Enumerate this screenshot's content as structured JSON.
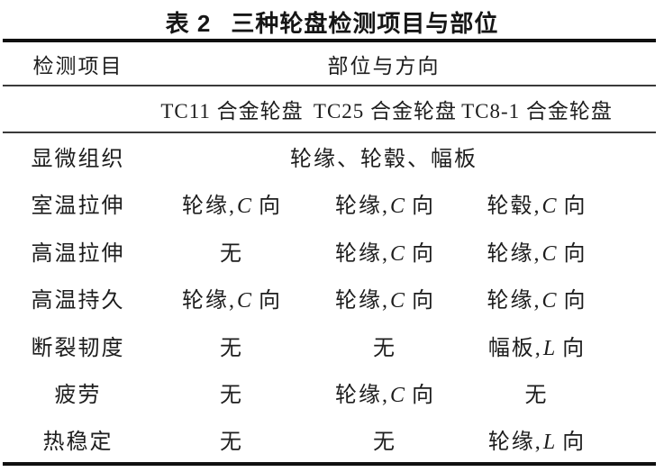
{
  "page": {
    "background": "#ffffff",
    "text_color": "#1d1d1d",
    "rule_color": "#101010"
  },
  "title": {
    "label": "表 2",
    "text": "三种轮盘检测项目与部位"
  },
  "table": {
    "header_col1": "检测项目",
    "header_group": "部位与方向",
    "columns": [
      "TC11 合金轮盘",
      "TC25 合金轮盘",
      "TC8-1 合金轮盘"
    ],
    "rows": [
      {
        "label": "显微组织",
        "span": "轮缘、轮毂、幅板"
      },
      {
        "label": "室温拉伸",
        "cells": [
          {
            "pre": "轮缘,",
            "var": "C",
            "post": " 向"
          },
          {
            "pre": "轮缘,",
            "var": "C",
            "post": " 向"
          },
          {
            "pre": "轮毂,",
            "var": "C",
            "post": " 向"
          }
        ]
      },
      {
        "label": "高温拉伸",
        "cells": [
          {
            "pre": "无"
          },
          {
            "pre": "轮缘,",
            "var": "C",
            "post": " 向"
          },
          {
            "pre": "轮缘,",
            "var": "C",
            "post": " 向"
          }
        ]
      },
      {
        "label": "高温持久",
        "cells": [
          {
            "pre": "轮缘,",
            "var": "C",
            "post": " 向"
          },
          {
            "pre": "轮缘,",
            "var": "C",
            "post": " 向"
          },
          {
            "pre": "轮缘,",
            "var": "C",
            "post": " 向"
          }
        ]
      },
      {
        "label": "断裂韧度",
        "cells": [
          {
            "pre": "无"
          },
          {
            "pre": "无"
          },
          {
            "pre": "幅板,",
            "var": "L",
            "post": " 向"
          }
        ]
      },
      {
        "label": "疲劳",
        "cells": [
          {
            "pre": "无"
          },
          {
            "pre": "轮缘,",
            "var": "C",
            "post": " 向"
          },
          {
            "pre": "无"
          }
        ]
      },
      {
        "label": "热稳定",
        "cells": [
          {
            "pre": "无"
          },
          {
            "pre": "无"
          },
          {
            "pre": "轮缘,",
            "var": "L",
            "post": " 向"
          }
        ]
      }
    ]
  }
}
